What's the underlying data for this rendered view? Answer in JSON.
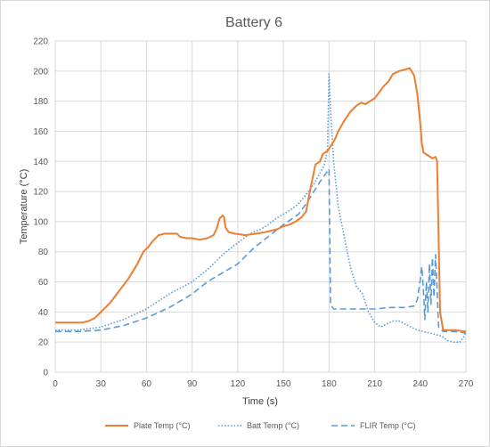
{
  "chart_data": {
    "type": "line",
    "title": "Battery 6",
    "xlabel": "Time (s)",
    "ylabel": "Temperature (°C)",
    "xlim": [
      0,
      270
    ],
    "ylim": [
      0,
      220
    ],
    "xticks": [
      "0",
      "30",
      "60",
      "90",
      "120",
      "150",
      "180",
      "210",
      "240",
      "270"
    ],
    "yticks": [
      "0",
      "20",
      "40",
      "60",
      "80",
      "100",
      "120",
      "140",
      "160",
      "180",
      "200",
      "220"
    ],
    "grid": true,
    "legend_position": "bottom",
    "series": [
      {
        "name": "Plate Temp (°C)",
        "color": "#ED7D31",
        "style": "solid",
        "points": [
          [
            0,
            33
          ],
          [
            10,
            33
          ],
          [
            18,
            33
          ],
          [
            22,
            34
          ],
          [
            26,
            36
          ],
          [
            30,
            40
          ],
          [
            36,
            46
          ],
          [
            42,
            54
          ],
          [
            48,
            62
          ],
          [
            54,
            72
          ],
          [
            58,
            80
          ],
          [
            61,
            83
          ],
          [
            64,
            87
          ],
          [
            68,
            91
          ],
          [
            72,
            92
          ],
          [
            76,
            92
          ],
          [
            80,
            92
          ],
          [
            82,
            90
          ],
          [
            86,
            89
          ],
          [
            90,
            89
          ],
          [
            95,
            88
          ],
          [
            100,
            89
          ],
          [
            104,
            91
          ],
          [
            106,
            95
          ],
          [
            108,
            102
          ],
          [
            110,
            104
          ],
          [
            111,
            103
          ],
          [
            112,
            96
          ],
          [
            114,
            93
          ],
          [
            118,
            92
          ],
          [
            125,
            91
          ],
          [
            132,
            92
          ],
          [
            138,
            93
          ],
          [
            142,
            94
          ],
          [
            146,
            95
          ],
          [
            150,
            97
          ],
          [
            154,
            98
          ],
          [
            158,
            100
          ],
          [
            162,
            103
          ],
          [
            165,
            107
          ],
          [
            167,
            118
          ],
          [
            169,
            128
          ],
          [
            171,
            138
          ],
          [
            174,
            140
          ],
          [
            176,
            145
          ],
          [
            179,
            147
          ],
          [
            181,
            150
          ],
          [
            184,
            155
          ],
          [
            186,
            160
          ],
          [
            190,
            167
          ],
          [
            194,
            173
          ],
          [
            198,
            177
          ],
          [
            201,
            179
          ],
          [
            204,
            178
          ],
          [
            207,
            180
          ],
          [
            210,
            182
          ],
          [
            213,
            186
          ],
          [
            216,
            190
          ],
          [
            219,
            193
          ],
          [
            222,
            198
          ],
          [
            226,
            200
          ],
          [
            230,
            201
          ],
          [
            233,
            202
          ],
          [
            236,
            197
          ],
          [
            238,
            185
          ],
          [
            240,
            165
          ],
          [
            241,
            152
          ],
          [
            242,
            146
          ],
          [
            245,
            144
          ],
          [
            248,
            142
          ],
          [
            250,
            143
          ],
          [
            251,
            140
          ],
          [
            252,
            90
          ],
          [
            253,
            40
          ],
          [
            255,
            28
          ],
          [
            262,
            28
          ],
          [
            270,
            27
          ]
        ]
      },
      {
        "name": "Batt Temp (°C)",
        "color": "#5B9BD5",
        "style": "dotted",
        "points": [
          [
            0,
            28
          ],
          [
            15,
            28
          ],
          [
            30,
            30
          ],
          [
            45,
            35
          ],
          [
            60,
            42
          ],
          [
            75,
            52
          ],
          [
            90,
            60
          ],
          [
            100,
            68
          ],
          [
            110,
            78
          ],
          [
            120,
            86
          ],
          [
            128,
            92
          ],
          [
            135,
            95
          ],
          [
            140,
            98
          ],
          [
            145,
            102
          ],
          [
            150,
            105
          ],
          [
            155,
            108
          ],
          [
            160,
            112
          ],
          [
            165,
            118
          ],
          [
            170,
            125
          ],
          [
            174,
            132
          ],
          [
            177,
            138
          ],
          [
            179,
            148
          ],
          [
            180,
            198
          ],
          [
            181,
            175
          ],
          [
            183,
            140
          ],
          [
            186,
            110
          ],
          [
            190,
            90
          ],
          [
            194,
            70
          ],
          [
            198,
            57
          ],
          [
            202,
            52
          ],
          [
            206,
            40
          ],
          [
            210,
            33
          ],
          [
            214,
            30
          ],
          [
            218,
            32
          ],
          [
            222,
            34
          ],
          [
            226,
            34
          ],
          [
            230,
            32
          ],
          [
            234,
            30
          ],
          [
            238,
            28
          ],
          [
            242,
            27
          ],
          [
            246,
            26
          ],
          [
            250,
            25
          ],
          [
            254,
            24
          ],
          [
            258,
            21
          ],
          [
            262,
            20
          ],
          [
            266,
            20
          ],
          [
            269,
            24
          ],
          [
            270,
            27
          ]
        ]
      },
      {
        "name": "FLIR Temp (°C)",
        "color": "#5B9BD5",
        "style": "dashed",
        "points": [
          [
            0,
            27
          ],
          [
            15,
            27
          ],
          [
            30,
            28
          ],
          [
            45,
            31
          ],
          [
            60,
            36
          ],
          [
            75,
            43
          ],
          [
            90,
            52
          ],
          [
            100,
            60
          ],
          [
            110,
            66
          ],
          [
            120,
            72
          ],
          [
            130,
            82
          ],
          [
            140,
            90
          ],
          [
            150,
            98
          ],
          [
            160,
            105
          ],
          [
            165,
            112
          ],
          [
            170,
            120
          ],
          [
            175,
            128
          ],
          [
            178,
            132
          ],
          [
            180,
            135
          ],
          [
            181,
            45
          ],
          [
            183,
            42
          ],
          [
            190,
            42
          ],
          [
            200,
            42
          ],
          [
            210,
            42
          ],
          [
            220,
            43
          ],
          [
            230,
            43
          ],
          [
            236,
            44
          ],
          [
            238,
            48
          ],
          [
            240,
            62
          ],
          [
            241,
            70
          ],
          [
            242,
            55
          ],
          [
            243,
            35
          ],
          [
            244,
            60
          ],
          [
            245,
            40
          ],
          [
            246,
            72
          ],
          [
            247,
            45
          ],
          [
            248,
            76
          ],
          [
            249,
            50
          ],
          [
            250,
            78
          ],
          [
            251,
            55
          ],
          [
            252,
            30
          ],
          [
            255,
            27
          ],
          [
            262,
            27
          ],
          [
            270,
            26
          ]
        ]
      }
    ]
  }
}
